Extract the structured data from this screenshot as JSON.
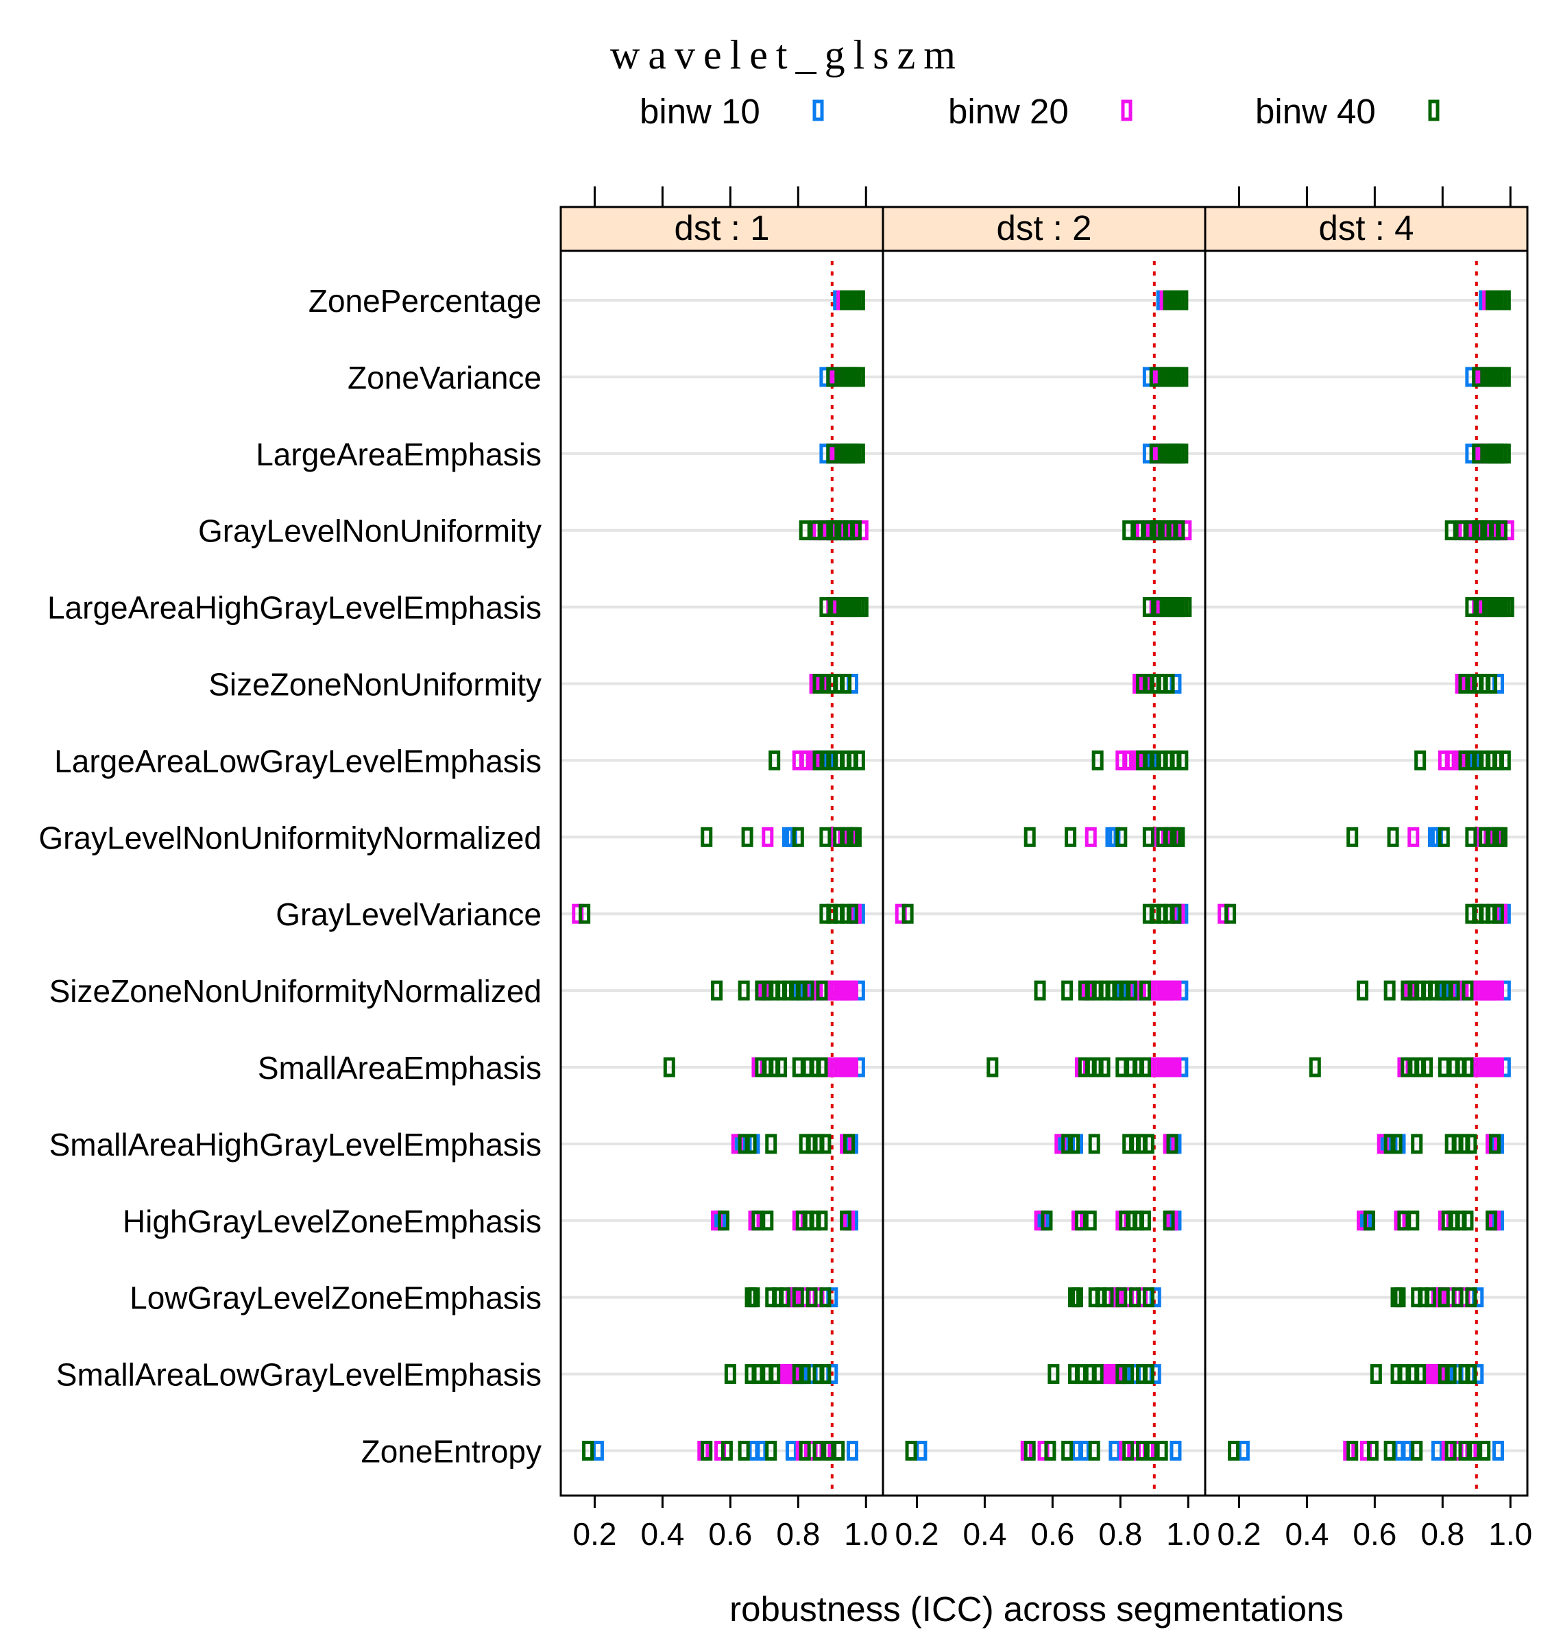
{
  "chart_data": {
    "type": "scatter",
    "title": "wavelet_glszm",
    "xlabel": "robustness (ICC) across segmentations",
    "ylabel": "",
    "xlim": [
      0.1,
      1.05
    ],
    "xticks": [
      0.2,
      0.4,
      0.6,
      0.8,
      1.0
    ],
    "xtick_labels": [
      "0.2",
      "0.4",
      "0.6",
      "0.8",
      "1.0"
    ],
    "threshold": 0.9,
    "threshold_color": "#e00000",
    "grid": "horizontal",
    "legend_position": "top",
    "strip_color": "#ffe5cc",
    "series": [
      {
        "name": "binw 10",
        "color": "#0a7cf0"
      },
      {
        "name": "binw 20",
        "color": "#f010f0"
      },
      {
        "name": "binw 40",
        "color": "#006400"
      }
    ],
    "panels": [
      "dst : 1",
      "dst : 2",
      "dst : 4"
    ],
    "categories": [
      "ZonePercentage",
      "ZoneVariance",
      "LargeAreaEmphasis",
      "GrayLevelNonUniformity",
      "LargeAreaHighGrayLevelEmphasis",
      "SizeZoneNonUniformity",
      "LargeAreaLowGrayLevelEmphasis",
      "GrayLevelNonUniformityNormalized",
      "GrayLevelVariance",
      "SizeZoneNonUniformityNormalized",
      "SmallAreaEmphasis",
      "SmallAreaHighGrayLevelEmphasis",
      "HighGrayLevelZoneEmphasis",
      "LowGrayLevelZoneEmphasis",
      "SmallAreaLowGrayLevelEmphasis",
      "ZoneEntropy"
    ],
    "values": {
      "ZonePercentage": [
        [
          0.92,
          0.93,
          0.94
        ],
        [
          0.93,
          0.94,
          0.95
        ],
        [
          0.94,
          0.95,
          0.96,
          0.97,
          0.98
        ]
      ],
      "ZoneVariance": [
        [
          0.88,
          0.9
        ],
        [
          0.91,
          0.92
        ],
        [
          0.9,
          0.93,
          0.94,
          0.95,
          0.96,
          0.97,
          0.98
        ]
      ],
      "LargeAreaEmphasis": [
        [
          0.88,
          0.9
        ],
        [
          0.91,
          0.92
        ],
        [
          0.9,
          0.93,
          0.94,
          0.95,
          0.96,
          0.97,
          0.98
        ]
      ],
      "GrayLevelNonUniformity": [
        [
          0.9,
          0.94
        ],
        [
          0.86,
          0.89,
          0.92,
          0.96,
          0.99
        ],
        [
          0.82,
          0.85,
          0.88,
          0.9,
          0.91,
          0.93,
          0.95,
          0.97
        ]
      ],
      "LargeAreaHighGrayLevelEmphasis": [
        [
          0.91
        ],
        [
          0.9,
          0.92
        ],
        [
          0.88,
          0.91,
          0.93,
          0.94,
          0.95,
          0.96,
          0.97,
          0.98,
          0.99
        ]
      ],
      "SizeZoneNonUniformity": [
        [
          0.96
        ],
        [
          0.85,
          0.87
        ],
        [
          0.86,
          0.88,
          0.9,
          0.92,
          0.94
        ]
      ],
      "LargeAreaLowGrayLevelEmphasis": [
        [
          0.87,
          0.89
        ],
        [
          0.8,
          0.82,
          0.84,
          0.85
        ],
        [
          0.73,
          0.86,
          0.88,
          0.9,
          0.92,
          0.94,
          0.96,
          0.98
        ]
      ],
      "GrayLevelNonUniformityNormalized": [
        [
          0.77,
          0.78
        ],
        [
          0.71,
          0.91,
          0.95
        ],
        [
          0.53,
          0.65,
          0.8,
          0.88,
          0.92,
          0.94,
          0.96,
          0.97
        ]
      ],
      "GrayLevelVariance": [
        [
          0.98
        ],
        [
          0.15,
          0.97
        ],
        [
          0.17,
          0.88,
          0.9,
          0.92,
          0.94,
          0.96
        ]
      ],
      "SizeZoneNonUniformityNormalized": [
        [
          0.8,
          0.85,
          0.98
        ],
        [
          0.7,
          0.84,
          0.88,
          0.9,
          0.91,
          0.92,
          0.93,
          0.94,
          0.95,
          0.96
        ],
        [
          0.56,
          0.64,
          0.69,
          0.71,
          0.73,
          0.75,
          0.77,
          0.79,
          0.81,
          0.83,
          0.87
        ]
      ],
      "SmallAreaEmphasis": [
        [
          0.98
        ],
        [
          0.68,
          0.85,
          0.9,
          0.91,
          0.92,
          0.93,
          0.94,
          0.95,
          0.96
        ],
        [
          0.42,
          0.69,
          0.71,
          0.73,
          0.75,
          0.8,
          0.83,
          0.85,
          0.87
        ]
      ],
      "SmallAreaHighGrayLevelEmphasis": [
        [
          0.63,
          0.67,
          0.96
        ],
        [
          0.62,
          0.94
        ],
        [
          0.64,
          0.66,
          0.72,
          0.82,
          0.84,
          0.86,
          0.88,
          0.95
        ]
      ],
      "HighGrayLevelZoneEmphasis": [
        [
          0.57,
          0.96
        ],
        [
          0.56,
          0.67,
          0.8,
          0.95
        ],
        [
          0.58,
          0.68,
          0.71,
          0.81,
          0.83,
          0.85,
          0.87,
          0.94
        ]
      ],
      "LowGrayLevelZoneEmphasis": [
        [
          0.9
        ],
        [
          0.78,
          0.79,
          0.82,
          0.86
        ],
        [
          0.66,
          0.67,
          0.72,
          0.74,
          0.76,
          0.8,
          0.84,
          0.88
        ]
      ],
      "SmallAreaLowGrayLevelEmphasis": [
        [
          0.81,
          0.84,
          0.9
        ],
        [
          0.76,
          0.77,
          0.78,
          0.79
        ],
        [
          0.6,
          0.66,
          0.68,
          0.71,
          0.73,
          0.8,
          0.82,
          0.86,
          0.88
        ]
      ],
      "ZoneEntropy": [
        [
          0.21,
          0.67,
          0.69,
          0.78,
          0.96
        ],
        [
          0.52,
          0.57,
          0.81,
          0.84,
          0.88
        ],
        [
          0.18,
          0.53,
          0.59,
          0.64,
          0.72,
          0.82,
          0.86,
          0.89,
          0.92
        ]
      ]
    },
    "panel_shifts": [
      0,
      0.003,
      0.004
    ]
  }
}
